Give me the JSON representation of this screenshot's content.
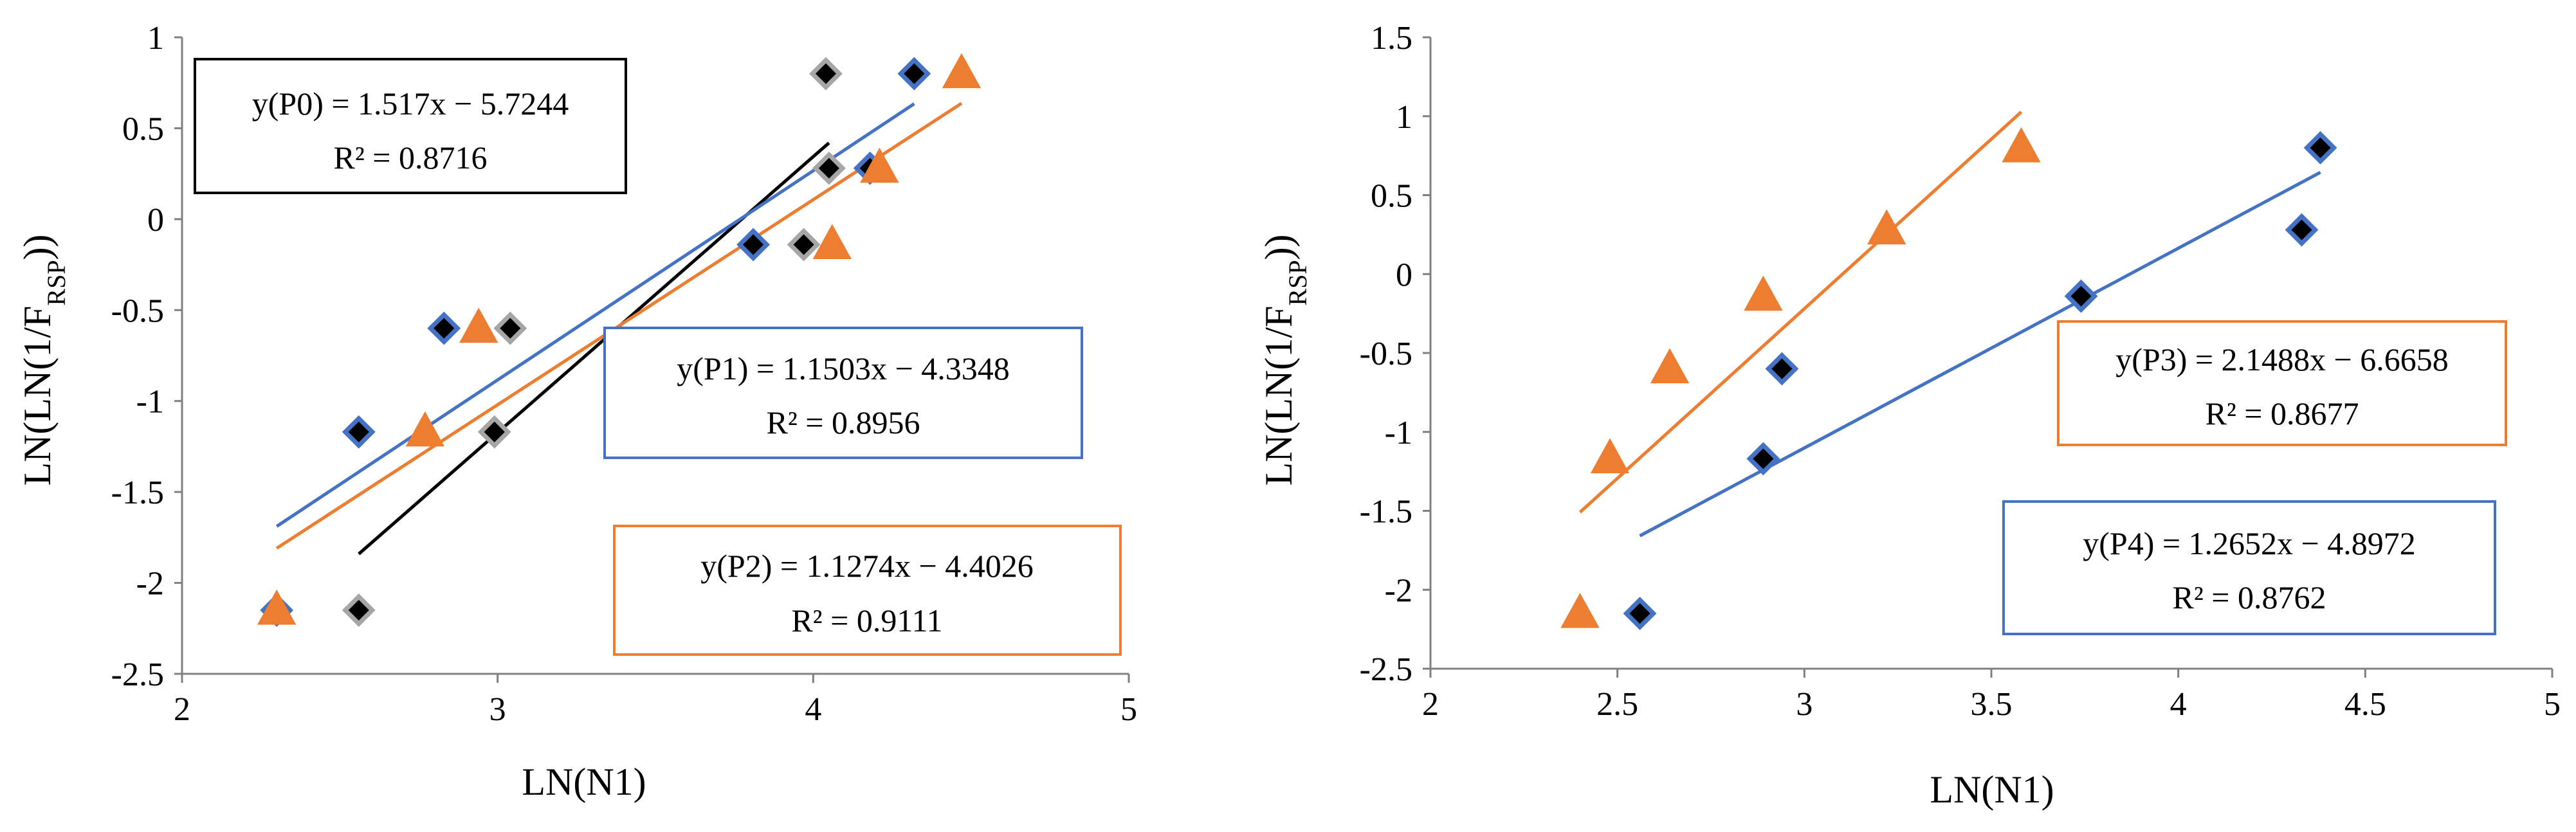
{
  "chart_data": [
    {
      "type": "scatter",
      "xlabel": "LN(N1)",
      "ylabel_main": "LN(LN(1/F",
      "ylabel_sub": "RSP",
      "ylabel_end": "))",
      "xlim": [
        2,
        5
      ],
      "ylim": [
        -2.5,
        1
      ],
      "x_ticks": [
        2,
        3,
        4,
        5
      ],
      "x_tick_labels": [
        "2",
        "3",
        "4",
        "5"
      ],
      "y_ticks": [
        -2.5,
        -2,
        -1.5,
        -1,
        -0.5,
        0,
        0.5,
        1
      ],
      "y_tick_labels": [
        "-2.5",
        "-2",
        "-1.5",
        "-1",
        "-0.5",
        "0",
        "0.5",
        "1"
      ],
      "series": [
        {
          "name": "P0",
          "marker": "diamond",
          "color": "#000000",
          "edge": "#a6a6a6",
          "line_color": "#000000",
          "x": [
            2.56,
            2.99,
            3.04,
            3.97,
            4.05,
            4.04
          ],
          "y": [
            -2.15,
            -1.17,
            -0.6,
            -0.14,
            0.28,
            0.8
          ],
          "fit": {
            "x1": 2.56,
            "x2": 4.05
          },
          "equation": "y(P0) = 1.517x  −  5.7244",
          "r2": "R² = 0.8716",
          "slope": 1.517,
          "intercept": -5.7244
        },
        {
          "name": "P1",
          "marker": "diamond",
          "color": "#000000",
          "edge": "#4472c4",
          "line_color": "#4472c4",
          "x": [
            2.3,
            2.56,
            2.83,
            3.81,
            4.18,
            4.32
          ],
          "y": [
            -2.15,
            -1.17,
            -0.6,
            -0.14,
            0.28,
            0.8
          ],
          "fit": {
            "x1": 2.3,
            "x2": 4.32
          },
          "equation": "y(P1) = 1.1503x  −  4.3348",
          "r2": "R² = 0.8956",
          "slope": 1.1503,
          "intercept": -4.3348
        },
        {
          "name": "P2",
          "marker": "triangle",
          "color": "#ed7d31",
          "edge": "#ed7d31",
          "line_color": "#ed7d31",
          "x": [
            2.3,
            2.77,
            2.94,
            4.06,
            4.21,
            4.47
          ],
          "y": [
            -2.15,
            -1.17,
            -0.6,
            -0.14,
            0.28,
            0.8
          ],
          "fit": {
            "x1": 2.3,
            "x2": 4.47
          },
          "equation": "y(P2) = 1.1274x  −  4.4026",
          "r2": "R² = 0.9111",
          "slope": 1.1274,
          "intercept": -4.4026
        }
      ]
    },
    {
      "type": "scatter",
      "xlabel": "LN(N1)",
      "ylabel_main": "LN(LN(1/F",
      "ylabel_sub": "RSP",
      "ylabel_end": "))",
      "xlim": [
        2,
        5
      ],
      "ylim": [
        -2.5,
        1.5
      ],
      "x_ticks": [
        2,
        2.5,
        3,
        3.5,
        4,
        4.5,
        5
      ],
      "x_tick_labels": [
        "2",
        "2.5",
        "3",
        "3.5",
        "4",
        "4.5",
        "5"
      ],
      "y_ticks": [
        -2.5,
        -2,
        -1.5,
        -1,
        -0.5,
        0,
        0.5,
        1,
        1.5
      ],
      "y_tick_labels": [
        "-2.5",
        "-2",
        "-1.5",
        "-1",
        "-0.5",
        "0",
        "0.5",
        "1",
        "1.5"
      ],
      "series": [
        {
          "name": "P3",
          "marker": "triangle",
          "color": "#ed7d31",
          "edge": "#ed7d31",
          "line_color": "#ed7d31",
          "x": [
            2.4,
            2.48,
            2.64,
            2.89,
            3.22,
            3.58
          ],
          "y": [
            -2.15,
            -1.17,
            -0.6,
            -0.14,
            0.28,
            0.8
          ],
          "fit": {
            "x1": 2.4,
            "x2": 3.58
          },
          "equation": "y(P3) = 2.1488x  − 6.6658",
          "r2": "R² = 0.8677",
          "slope": 2.1488,
          "intercept": -6.6658
        },
        {
          "name": "P4",
          "marker": "diamond",
          "color": "#000000",
          "edge": "#4472c4",
          "line_color": "#4472c4",
          "x": [
            2.56,
            2.89,
            2.94,
            3.74,
            4.33,
            4.38
          ],
          "y": [
            -2.15,
            -1.17,
            -0.6,
            -0.14,
            0.28,
            0.8
          ],
          "fit": {
            "x1": 2.56,
            "x2": 4.38
          },
          "equation": "y(P4) = 1.2652x  − 4.8972",
          "r2": "R² = 0.8762",
          "slope": 1.2652,
          "intercept": -4.8972
        }
      ]
    }
  ]
}
